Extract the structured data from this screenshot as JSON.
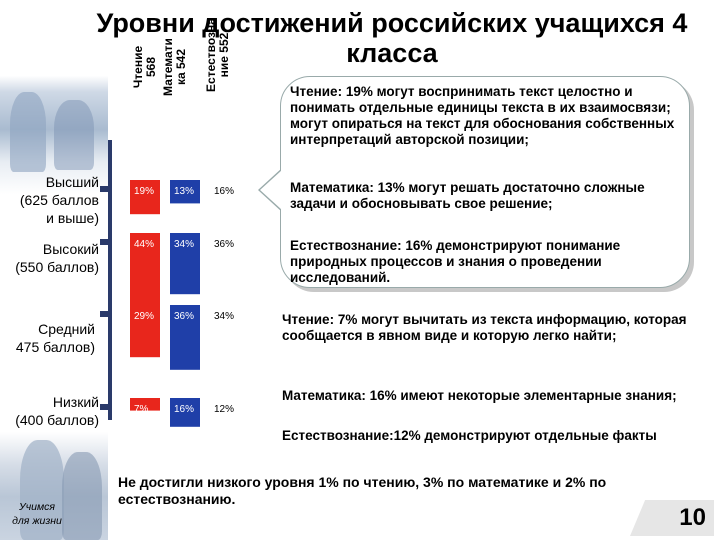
{
  "title": "Уровни достижений российских учащихся 4 класса",
  "slogan_line1": "Учимся",
  "slogan_line2": "для жизни",
  "page_number": "10",
  "subjects": [
    {
      "line1": "Чтение",
      "line2": "568"
    },
    {
      "line1": "Математи",
      "line2": "ка 542"
    },
    {
      "line1": "Естествозна",
      "line2": "ние 552"
    }
  ],
  "levels": [
    {
      "line1": "Высший",
      "line2": "(625 баллов",
      "line3": "и выше)"
    },
    {
      "line1": "Высокий",
      "line2": "(550 баллов)",
      "line3": ""
    },
    {
      "line1": "Средний",
      "line2": "475 баллов)",
      "line3": ""
    },
    {
      "line1": "Низкий",
      "line2": "(400 баллов)",
      "line3": ""
    }
  ],
  "chart_data": {
    "type": "bar",
    "categories": [
      "Высший",
      "Высокий",
      "Средний",
      "Низкий"
    ],
    "series": [
      {
        "name": "Чтение 568",
        "color": "#e8261c",
        "values": [
          19,
          44,
          29,
          7
        ],
        "labels": [
          "19%",
          "44%",
          "29%",
          "7%"
        ]
      },
      {
        "name": "Математика 542",
        "color": "#1f3fa8",
        "values": [
          13,
          34,
          36,
          16
        ],
        "labels": [
          "13%",
          "34%",
          "36%",
          "16%"
        ]
      },
      {
        "name": "Естествознание 552",
        "color": "#ffffff",
        "values": [
          16,
          36,
          34,
          12
        ],
        "labels": [
          "16%",
          "36%",
          "34%",
          "12%"
        ]
      }
    ]
  },
  "bubble_paragraphs": [
    "Чтение: 19% могут воспринимать текст целостно и понимать отдельные единицы текста в их взаимосвязи; могут опираться на текст для обоснования собственных интерпретаций авторской позиции;",
    "Математика: 13% могут решать достаточно сложные задачи и обосновывать свое решение;",
    "Естествознание: 16% демонстрируют понимание природных процессов и знания о проведении исследований."
  ],
  "low_paragraphs": [
    "Чтение: 7% могут вычитать из текста информацию, которая сообщается в явном виде и которую легко найти;",
    "Математика: 16% имеют некоторые элементарные знания;",
    "Естествознание:12% демонстрируют отдельные факты"
  ],
  "bottom_note": "Не достигли низкого уровня 1% по чтению, 3% по математике и 2% по естествознанию."
}
